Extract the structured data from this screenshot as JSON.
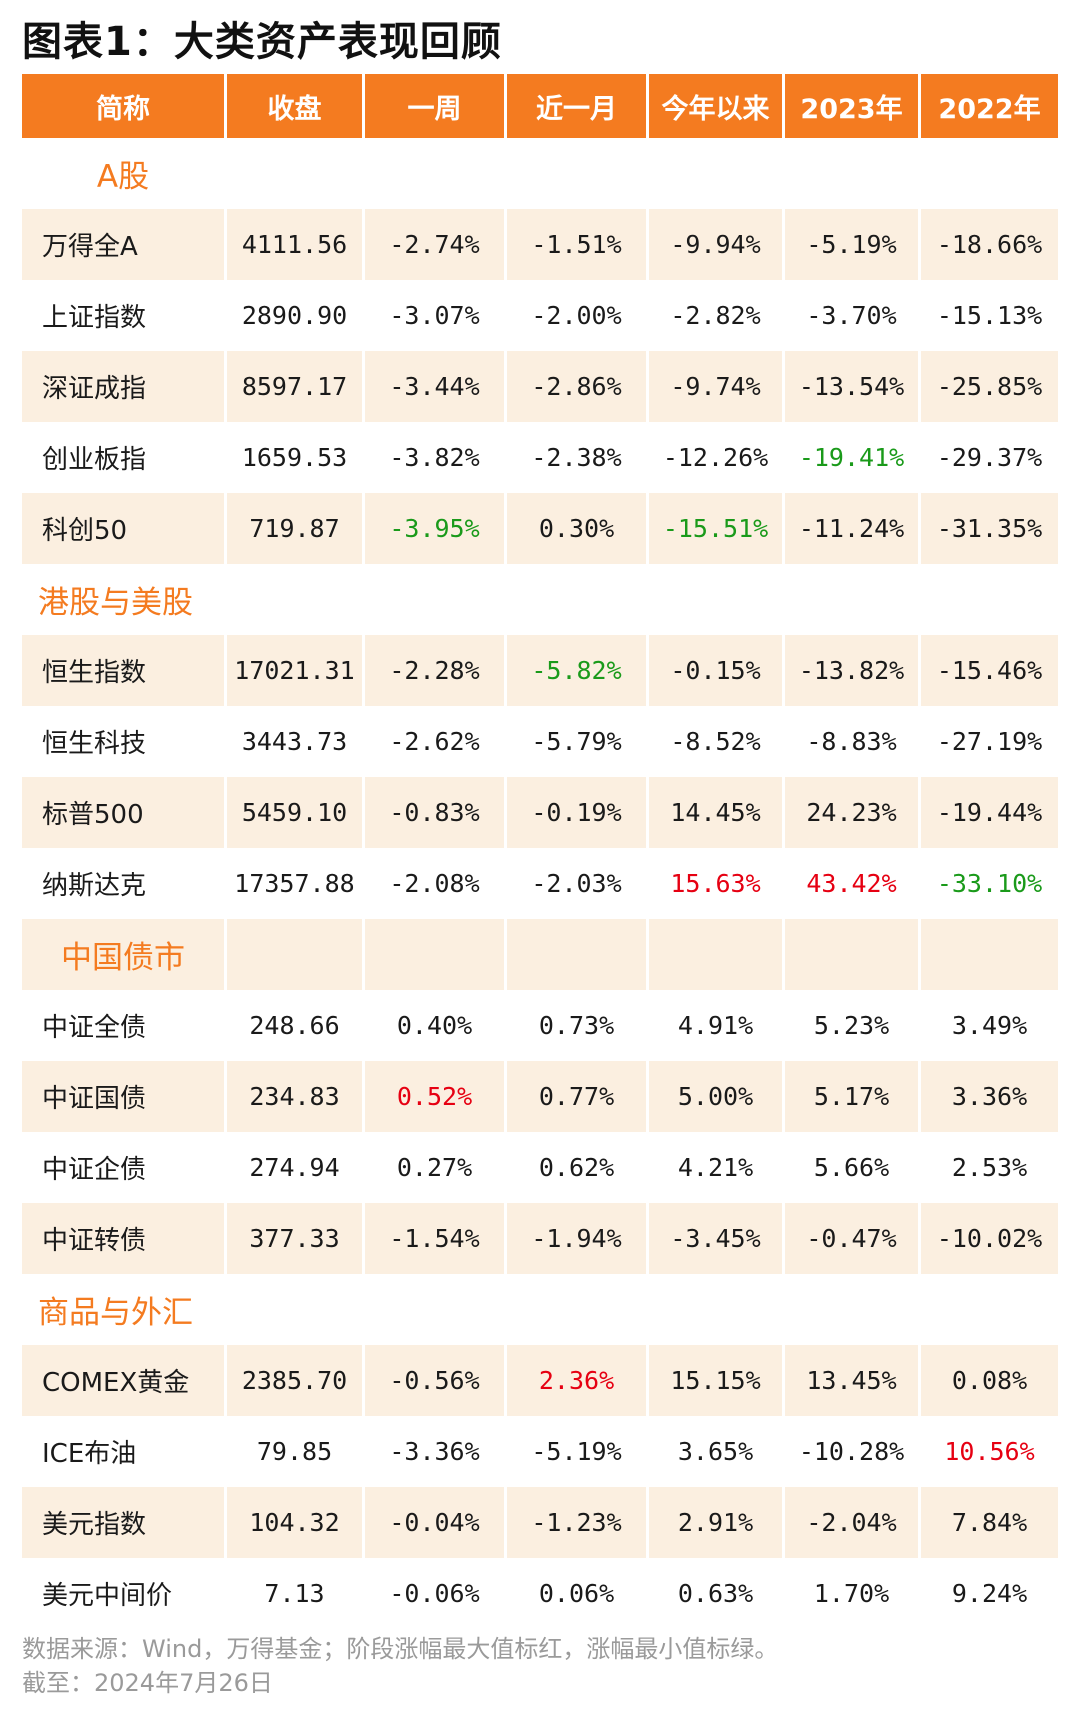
{
  "title": "图表1：大类资产表现回顾",
  "columns": [
    "简称",
    "收盘",
    "一周",
    "近一月",
    "今年以来",
    "2023年",
    "2022年"
  ],
  "sections": [
    {
      "label": "A股",
      "shaded_header": false,
      "rows": [
        {
          "name": "万得全A",
          "values": [
            "4111.56",
            "-2.74%",
            "-1.51%",
            "-9.94%",
            "-5.19%",
            "-18.66%"
          ],
          "colors": [
            "",
            "",
            "",
            "",
            "",
            ""
          ],
          "shade": true
        },
        {
          "name": "上证指数",
          "values": [
            "2890.90",
            "-3.07%",
            "-2.00%",
            "-2.82%",
            "-3.70%",
            "-15.13%"
          ],
          "colors": [
            "",
            "",
            "",
            "",
            "",
            ""
          ],
          "shade": false
        },
        {
          "name": "深证成指",
          "values": [
            "8597.17",
            "-3.44%",
            "-2.86%",
            "-9.74%",
            "-13.54%",
            "-25.85%"
          ],
          "colors": [
            "",
            "",
            "",
            "",
            "",
            ""
          ],
          "shade": true
        },
        {
          "name": "创业板指",
          "values": [
            "1659.53",
            "-3.82%",
            "-2.38%",
            "-12.26%",
            "-19.41%",
            "-29.37%"
          ],
          "colors": [
            "",
            "",
            "",
            "",
            "green",
            ""
          ],
          "shade": false
        },
        {
          "name": "科创50",
          "values": [
            "719.87",
            "-3.95%",
            "0.30%",
            "-15.51%",
            "-11.24%",
            "-31.35%"
          ],
          "colors": [
            "",
            "green",
            "",
            "green",
            "",
            ""
          ],
          "shade": true
        }
      ]
    },
    {
      "label": "港股与美股",
      "shaded_header": false,
      "rows": [
        {
          "name": "恒生指数",
          "values": [
            "17021.31",
            "-2.28%",
            "-5.82%",
            "-0.15%",
            "-13.82%",
            "-15.46%"
          ],
          "colors": [
            "",
            "",
            "green",
            "",
            "",
            ""
          ],
          "shade": true
        },
        {
          "name": "恒生科技",
          "values": [
            "3443.73",
            "-2.62%",
            "-5.79%",
            "-8.52%",
            "-8.83%",
            "-27.19%"
          ],
          "colors": [
            "",
            "",
            "",
            "",
            "",
            ""
          ],
          "shade": false
        },
        {
          "name": "标普500",
          "values": [
            "5459.10",
            "-0.83%",
            "-0.19%",
            "14.45%",
            "24.23%",
            "-19.44%"
          ],
          "colors": [
            "",
            "",
            "",
            "",
            "",
            ""
          ],
          "shade": true
        },
        {
          "name": "纳斯达克",
          "values": [
            "17357.88",
            "-2.08%",
            "-2.03%",
            "15.63%",
            "43.42%",
            "-33.10%"
          ],
          "colors": [
            "",
            "",
            "",
            "red",
            "red",
            "green"
          ],
          "shade": false
        }
      ]
    },
    {
      "label": "中国债市",
      "shaded_header": true,
      "rows": [
        {
          "name": "中证全债",
          "values": [
            "248.66",
            "0.40%",
            "0.73%",
            "4.91%",
            "5.23%",
            "3.49%"
          ],
          "colors": [
            "",
            "",
            "",
            "",
            "",
            ""
          ],
          "shade": false
        },
        {
          "name": "中证国债",
          "values": [
            "234.83",
            "0.52%",
            "0.77%",
            "5.00%",
            "5.17%",
            "3.36%"
          ],
          "colors": [
            "",
            "red",
            "",
            "",
            "",
            ""
          ],
          "shade": true
        },
        {
          "name": "中证企债",
          "values": [
            "274.94",
            "0.27%",
            "0.62%",
            "4.21%",
            "5.66%",
            "2.53%"
          ],
          "colors": [
            "",
            "",
            "",
            "",
            "",
            ""
          ],
          "shade": false
        },
        {
          "name": "中证转债",
          "values": [
            "377.33",
            "-1.54%",
            "-1.94%",
            "-3.45%",
            "-0.47%",
            "-10.02%"
          ],
          "colors": [
            "",
            "",
            "",
            "",
            "",
            ""
          ],
          "shade": true
        }
      ]
    },
    {
      "label": "商品与外汇",
      "shaded_header": false,
      "rows": [
        {
          "name": "COMEX黄金",
          "values": [
            "2385.70",
            "-0.56%",
            "2.36%",
            "15.15%",
            "13.45%",
            "0.08%"
          ],
          "colors": [
            "",
            "",
            "red",
            "",
            "",
            ""
          ],
          "shade": true
        },
        {
          "name": "ICE布油",
          "values": [
            "79.85",
            "-3.36%",
            "-5.19%",
            "3.65%",
            "-10.28%",
            "10.56%"
          ],
          "colors": [
            "",
            "",
            "",
            "",
            "",
            "red"
          ],
          "shade": false
        },
        {
          "name": "美元指数",
          "values": [
            "104.32",
            "-0.04%",
            "-1.23%",
            "2.91%",
            "-2.04%",
            "7.84%"
          ],
          "colors": [
            "",
            "",
            "",
            "",
            "",
            ""
          ],
          "shade": true
        },
        {
          "name": "美元中间价",
          "values": [
            "7.13",
            "-0.06%",
            "0.06%",
            "0.63%",
            "1.70%",
            "9.24%"
          ],
          "colors": [
            "",
            "",
            "",
            "",
            "",
            ""
          ],
          "shade": false
        }
      ]
    }
  ],
  "footer": {
    "source": "数据来源：Wind，万得基金；阶段涨幅最大值标红，涨幅最小值标绿。",
    "date": "截至：2024年7月26日"
  },
  "colors": {
    "header_bg": "#f47b20",
    "row_shade": "#fbefe0",
    "max_red": "#e60012",
    "min_green": "#1a9a1a"
  }
}
